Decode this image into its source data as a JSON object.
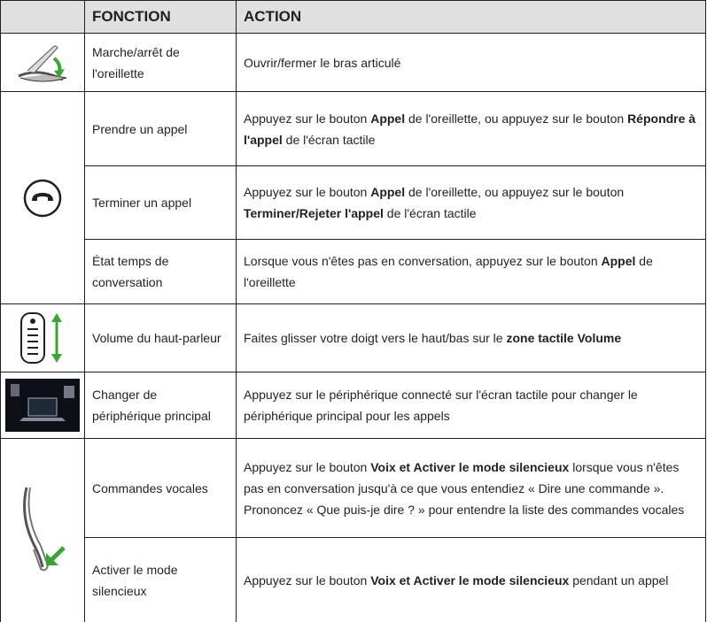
{
  "header": {
    "function": "FONCTION",
    "action": "ACTION"
  },
  "rows": [
    {
      "function": "Marche/arrêt de l'oreillette",
      "action": [
        {
          "text": "Ouvrir/fermer le bras articulé"
        }
      ]
    },
    {
      "function": "Prendre un appel",
      "action": [
        {
          "text": "Appuyez sur le bouton "
        },
        {
          "text": "Appel",
          "bold": true
        },
        {
          "text": " de l'oreillette, ou appuyez sur le bouton "
        },
        {
          "text": "Répondre à l'appel",
          "bold": true
        },
        {
          "text": " de l'écran tactile"
        }
      ]
    },
    {
      "function": "Terminer un appel",
      "action": [
        {
          "text": "Appuyez sur le bouton "
        },
        {
          "text": "Appel",
          "bold": true
        },
        {
          "text": " de l'oreillette, ou appuyez sur le bouton "
        },
        {
          "text": "Terminer/Rejeter l'appel",
          "bold": true
        },
        {
          "text": " de l'écran tactile"
        }
      ]
    },
    {
      "function": "État temps de conversation",
      "action": [
        {
          "text": "Lorsque vous n'êtes pas en conversation, appuyez sur le bouton "
        },
        {
          "text": "Appel",
          "bold": true
        },
        {
          "text": " de l'oreillette"
        }
      ]
    },
    {
      "function": "Volume du haut-parleur",
      "action": [
        {
          "text": "Faites glisser votre doigt vers le haut/bas sur le "
        },
        {
          "text": "zone tactile Volume",
          "bold": true
        }
      ]
    },
    {
      "function": "Changer de périphérique principal",
      "action": [
        {
          "text": "Appuyez sur le périphérique connecté sur l'écran tactile pour changer le périphérique principal pour les appels"
        }
      ]
    },
    {
      "function": "Commandes vocales",
      "action": [
        {
          "text": "Appuyez sur le bouton "
        },
        {
          "text": "Voix et Activer le mode silencieux",
          "bold": true
        },
        {
          "text": " lorsque vous n'êtes pas en conversation jusqu'à ce que vous entendiez « Dire une commande ». Prononcez « Que puis-je dire ? » pour entendre la liste des commandes vocales"
        }
      ]
    },
    {
      "function": "Activer le mode silencieux",
      "action": [
        {
          "text": "Appuyez sur le bouton "
        },
        {
          "text": "Voix et Activer le mode silencieux",
          "bold": true
        },
        {
          "text": " pendant un appel"
        }
      ]
    }
  ]
}
